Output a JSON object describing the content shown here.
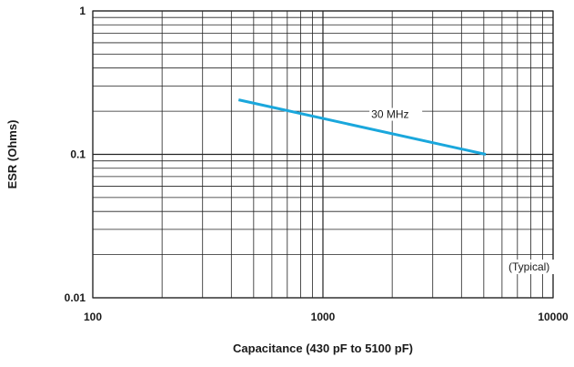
{
  "chart_data": {
    "type": "line",
    "title": "",
    "xlabel": "Capacitance (430 pF to 5100 pF)",
    "ylabel": "ESR (Ohms)",
    "xscale": "log",
    "yscale": "log",
    "xlim": [
      100,
      10000
    ],
    "ylim": [
      0.01,
      1
    ],
    "x_ticks": [
      100,
      1000,
      10000
    ],
    "x_tick_labels": [
      "100",
      "1000",
      "10000"
    ],
    "y_ticks": [
      0.01,
      0.1,
      1
    ],
    "y_tick_labels": [
      "0.01",
      "0.1",
      "1"
    ],
    "grid": true,
    "legend": "none",
    "series": [
      {
        "name": "30 MHz",
        "color": "#1aa7dc",
        "x": [
          430,
          5100
        ],
        "y": [
          0.24,
          0.1
        ]
      }
    ],
    "annotations": [
      {
        "text": "(Typical)",
        "x": 6400,
        "y": 0.0155
      }
    ]
  }
}
